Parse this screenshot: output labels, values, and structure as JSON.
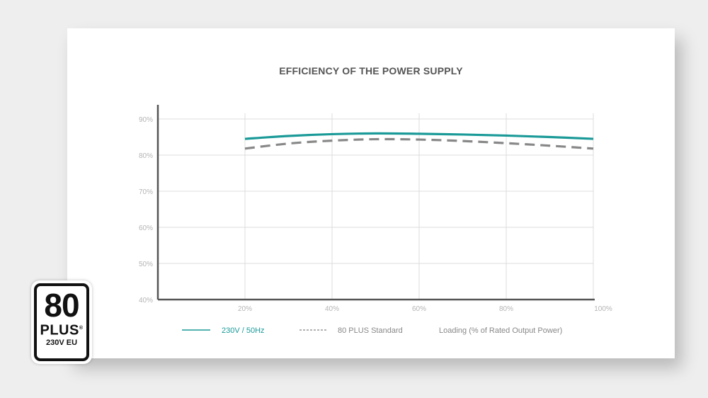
{
  "chart_data": {
    "type": "line",
    "title": "EFFICIENCY OF THE POWER SUPPLY",
    "xlabel": "Loading (% of Rated Output Power)",
    "ylabel": "",
    "x_ticks": [
      "20%",
      "40%",
      "60%",
      "80%",
      "100%"
    ],
    "y_ticks": [
      "40%",
      "50%",
      "60%",
      "70%",
      "80%",
      "90%"
    ],
    "xlim": [
      0,
      100
    ],
    "ylim": [
      40,
      90
    ],
    "grid": true,
    "legend_position": "bottom",
    "series": [
      {
        "name": "230V / 50Hz",
        "style": "solid",
        "color": "#1a9a98",
        "x": [
          20,
          30,
          40,
          50,
          60,
          70,
          80,
          90,
          100
        ],
        "y": [
          84.5,
          85.3,
          85.8,
          86.0,
          85.9,
          85.7,
          85.4,
          85.0,
          84.5
        ]
      },
      {
        "name": "80 PLUS Standard",
        "style": "dashed",
        "color": "#888888",
        "x": [
          20,
          30,
          40,
          50,
          60,
          70,
          80,
          90,
          100
        ],
        "y": [
          81.8,
          83.2,
          84.0,
          84.4,
          84.3,
          83.9,
          83.3,
          82.6,
          81.8
        ]
      }
    ]
  },
  "badge": {
    "number": "80",
    "plus": "PLUS",
    "registered": "®",
    "subtitle": "230V EU"
  }
}
